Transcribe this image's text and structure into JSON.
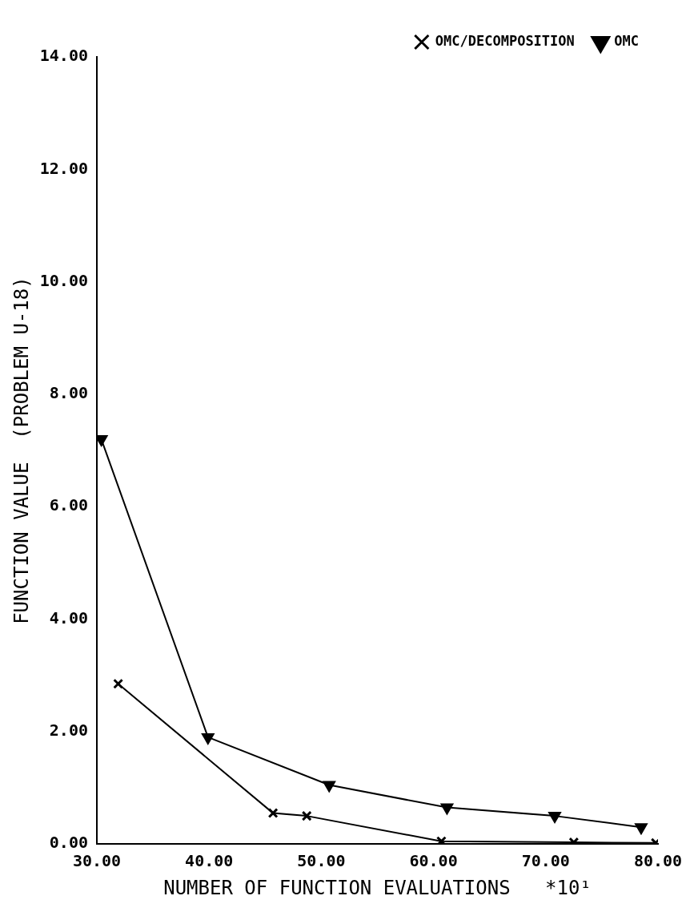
{
  "chart_data": {
    "type": "line",
    "xlabel": "NUMBER OF FUNCTION EVALUATIONS   *10¹",
    "ylabel": "FUNCTION VALUE  (PROBLEM U-18)",
    "series": [
      {
        "name": "OMC/DECOMPOSITION",
        "color": "#000000",
        "marker": "cross",
        "x": [
          31.9,
          45.7,
          48.7,
          60.7,
          72.5,
          79.8
        ],
        "values": [
          2.85,
          0.55,
          0.5,
          0.05,
          0.03,
          0.02
        ]
      },
      {
        "name": "OMC",
        "color": "#000000",
        "marker": "triangle",
        "x": [
          30.4,
          39.9,
          50.7,
          61.2,
          70.8,
          78.5
        ],
        "values": [
          7.2,
          1.9,
          1.05,
          0.65,
          0.5,
          0.3
        ]
      }
    ],
    "xlim": [
      30,
      80
    ],
    "xticks": [
      {
        "value": 30,
        "label": "30.00"
      },
      {
        "value": 40,
        "label": "40.00"
      },
      {
        "value": 50,
        "label": "50.00"
      },
      {
        "value": 60,
        "label": "60.00"
      },
      {
        "value": 70,
        "label": "70.00"
      },
      {
        "value": 80,
        "label": "80.00"
      }
    ],
    "ylim": [
      0,
      14
    ],
    "yticks": [
      {
        "value": 0,
        "label": "0.00"
      },
      {
        "value": 2,
        "label": "2.00"
      },
      {
        "value": 4,
        "label": "4.00"
      },
      {
        "value": 6,
        "label": "6.00"
      },
      {
        "value": 8,
        "label": "8.00"
      },
      {
        "value": 10,
        "label": "10.00"
      },
      {
        "value": 12,
        "label": "12.00"
      },
      {
        "value": 14,
        "label": "14.00"
      }
    ],
    "grid": false,
    "legend": "top right",
    "line_style": "solid"
  }
}
